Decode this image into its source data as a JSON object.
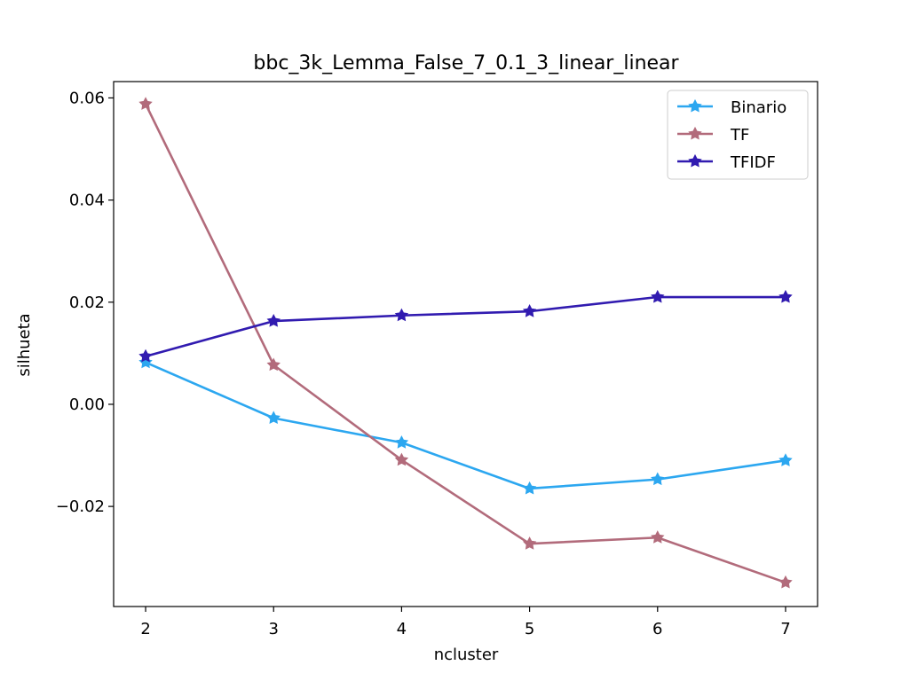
{
  "chart_data": {
    "type": "line",
    "title": "bbc_3k_Lemma_False_7_0.1_3_linear_linear",
    "xlabel": "ncluster",
    "ylabel": "silhueta",
    "x": [
      2,
      3,
      4,
      5,
      6,
      7
    ],
    "xlim": [
      1.75,
      7.25
    ],
    "ylim": [
      -0.0396,
      0.0632
    ],
    "xticks": [
      2,
      3,
      4,
      5,
      6,
      7
    ],
    "xtick_labels": [
      "2",
      "3",
      "4",
      "5",
      "6",
      "7"
    ],
    "yticks": [
      -0.02,
      0.0,
      0.02,
      0.04,
      0.06
    ],
    "ytick_labels": [
      "−0.02",
      "0.00",
      "0.02",
      "0.04",
      "0.06"
    ],
    "grid": false,
    "legend_position": "top-right",
    "series": [
      {
        "name": "Binario",
        "color": "#2ca7f0",
        "marker": "star",
        "values": [
          0.0082,
          -0.0027,
          -0.0075,
          -0.0165,
          -0.0147,
          -0.011
        ]
      },
      {
        "name": "TF",
        "color": "#b26b7b",
        "marker": "star",
        "values": [
          0.0588,
          0.0077,
          -0.0109,
          -0.0273,
          -0.0261,
          -0.0349
        ]
      },
      {
        "name": "TFIDF",
        "color": "#311bb0",
        "marker": "star",
        "values": [
          0.0094,
          0.0163,
          0.0174,
          0.0182,
          0.021,
          0.021
        ]
      }
    ]
  }
}
